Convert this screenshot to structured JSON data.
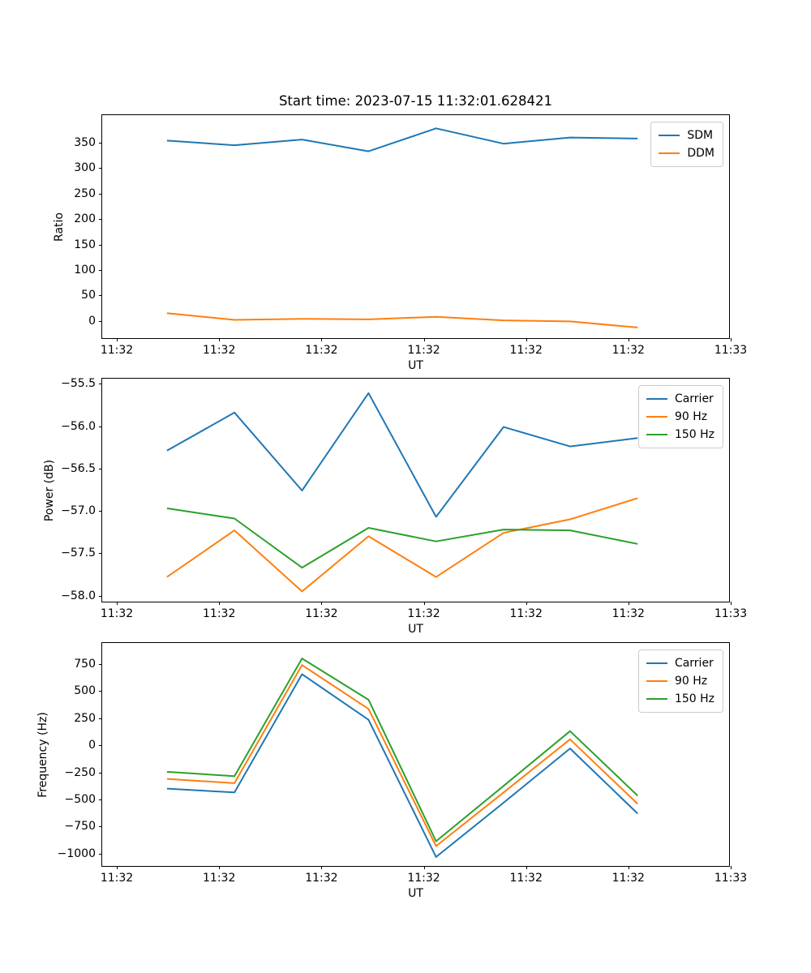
{
  "figure": {
    "title": "Start time: 2023-07-15 11:32:01.628421",
    "background_color": "#ffffff",
    "axes_edge_color": "#000000",
    "series_colors": {
      "blue": "#1f77b4",
      "orange": "#ff7f0e",
      "green": "#2ca02c"
    }
  },
  "chart_data": [
    {
      "id": "ratio",
      "type": "line",
      "title": "Start time: 2023-07-15 11:32:01.628421",
      "xlabel": "UT",
      "ylabel": "Ratio",
      "grid": false,
      "legend_position": "upper right",
      "x_seconds_after_11_32": [
        4.9,
        11.5,
        18.1,
        24.6,
        31.2,
        37.8,
        44.3,
        50.9
      ],
      "xlim_seconds": [
        -1.43,
        60.0
      ],
      "xticks": {
        "seconds": [
          0,
          10,
          20,
          30,
          40,
          50,
          60
        ],
        "labels": [
          "11:32",
          "11:32",
          "11:32",
          "11:32",
          "11:32",
          "11:32",
          "11:33"
        ]
      },
      "ylim": [
        -37,
        404
      ],
      "yticks": {
        "values": [
          0,
          50,
          100,
          150,
          200,
          250,
          300,
          350
        ],
        "labels": [
          "0",
          "50",
          "100",
          "150",
          "200",
          "250",
          "300",
          "350"
        ]
      },
      "series": [
        {
          "name": "SDM",
          "color": "#1f77b4",
          "values": [
            354,
            345,
            356,
            333,
            378,
            348,
            360,
            358
          ]
        },
        {
          "name": "DDM",
          "color": "#ff7f0e",
          "values": [
            15,
            2,
            4,
            3,
            8,
            1,
            -1,
            -13
          ]
        }
      ]
    },
    {
      "id": "power",
      "type": "line",
      "title": "",
      "xlabel": "UT",
      "ylabel": "Power (dB)",
      "grid": false,
      "legend_position": "upper right",
      "x_seconds_after_11_32": [
        4.9,
        11.5,
        18.1,
        24.6,
        31.2,
        37.8,
        44.3,
        50.9
      ],
      "xlim_seconds": [
        -1.43,
        60.0
      ],
      "xticks": {
        "seconds": [
          0,
          10,
          20,
          30,
          40,
          50,
          60
        ],
        "labels": [
          "11:32",
          "11:32",
          "11:32",
          "11:32",
          "11:32",
          "11:32",
          "11:33"
        ]
      },
      "ylim": [
        -58.09,
        -55.44
      ],
      "yticks": {
        "values": [
          -58.0,
          -57.5,
          -57.0,
          -56.5,
          -56.0,
          -55.5
        ],
        "labels": [
          "−58.0",
          "−57.5",
          "−57.0",
          "−56.5",
          "−56.0",
          "−55.5"
        ]
      },
      "series": [
        {
          "name": "Carrier",
          "color": "#1f77b4",
          "values": [
            -56.29,
            -55.84,
            -56.76,
            -55.61,
            -57.07,
            -56.01,
            -56.24,
            -56.14
          ]
        },
        {
          "name": "90 Hz",
          "color": "#ff7f0e",
          "values": [
            -57.78,
            -57.23,
            -57.95,
            -57.3,
            -57.78,
            -57.26,
            -57.1,
            -56.85
          ]
        },
        {
          "name": "150 Hz",
          "color": "#2ca02c",
          "values": [
            -56.97,
            -57.09,
            -57.67,
            -57.2,
            -57.36,
            -57.22,
            -57.23,
            -57.39
          ]
        }
      ]
    },
    {
      "id": "frequency",
      "type": "line",
      "title": "",
      "xlabel": "UT",
      "ylabel": "Frequency (Hz)",
      "grid": false,
      "legend_position": "upper right",
      "x_seconds_after_11_32": [
        4.9,
        11.5,
        18.1,
        24.6,
        31.2,
        37.8,
        44.3,
        50.9
      ],
      "xlim_seconds": [
        -1.43,
        60.0
      ],
      "xticks": {
        "seconds": [
          0,
          10,
          20,
          30,
          40,
          50,
          60
        ],
        "labels": [
          "11:32",
          "11:32",
          "11:32",
          "11:32",
          "11:32",
          "11:32",
          "11:33"
        ]
      },
      "ylim": [
        -1128,
        943
      ],
      "yticks": {
        "values": [
          -1000,
          -750,
          -500,
          -250,
          0,
          250,
          500,
          750
        ],
        "labels": [
          "−1000",
          "−750",
          "−500",
          "−250",
          "0",
          "250",
          "500",
          "750"
        ]
      },
      "series": [
        {
          "name": "Carrier",
          "color": "#1f77b4",
          "values": [
            -400,
            -435,
            655,
            235,
            -1030,
            -530,
            -30,
            -630
          ]
        },
        {
          "name": "90 Hz",
          "color": "#ff7f0e",
          "values": [
            -310,
            -350,
            740,
            335,
            -930,
            -435,
            55,
            -540
          ]
        },
        {
          "name": "150 Hz",
          "color": "#2ca02c",
          "values": [
            -245,
            -285,
            800,
            420,
            -885,
            -375,
            130,
            -465
          ]
        }
      ]
    }
  ]
}
